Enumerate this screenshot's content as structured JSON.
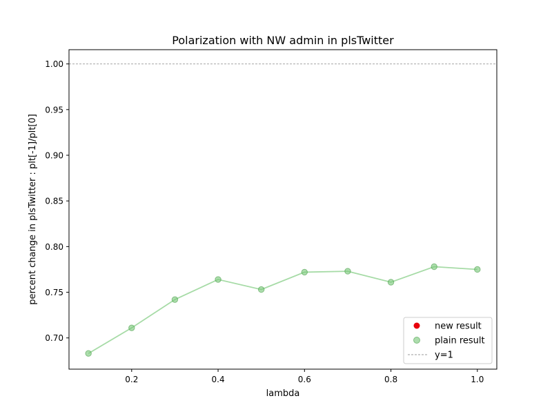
{
  "chart_data": {
    "type": "line",
    "title": "Polarization with NW admin in plsTwitter",
    "xlabel": "lambda",
    "ylabel": "percent change in plsTwitter : plt[-1]/plt[0]",
    "xlim": [
      0.055,
      1.045
    ],
    "ylim": [
      0.6658,
      1.0156
    ],
    "xticks": [
      0.2,
      0.4,
      0.6,
      0.8,
      1.0
    ],
    "xtick_labels": [
      "0.2",
      "0.4",
      "0.6",
      "0.8",
      "1.0"
    ],
    "yticks": [
      0.7,
      0.75,
      0.8,
      0.85,
      0.9,
      0.95,
      1.0
    ],
    "ytick_labels": [
      "0.70",
      "0.75",
      "0.80",
      "0.85",
      "0.90",
      "0.95",
      "1.00"
    ],
    "grid": false,
    "legend_position": "lower-right",
    "series": [
      {
        "name": "new result",
        "style": "scatter",
        "color": "#e8000b",
        "x": [],
        "y": []
      },
      {
        "name": "plain result",
        "style": "line+markers",
        "color": "#76c776",
        "x": [
          0.1,
          0.2,
          0.3,
          0.4,
          0.5,
          0.6,
          0.7,
          0.8,
          0.9,
          1.0
        ],
        "y": [
          0.683,
          0.711,
          0.742,
          0.764,
          0.753,
          0.772,
          0.773,
          0.761,
          0.778,
          0.775
        ]
      }
    ],
    "reference_lines": [
      {
        "name": "y=1",
        "y": 1.0,
        "color": "#999999",
        "style": "dashed"
      }
    ]
  }
}
